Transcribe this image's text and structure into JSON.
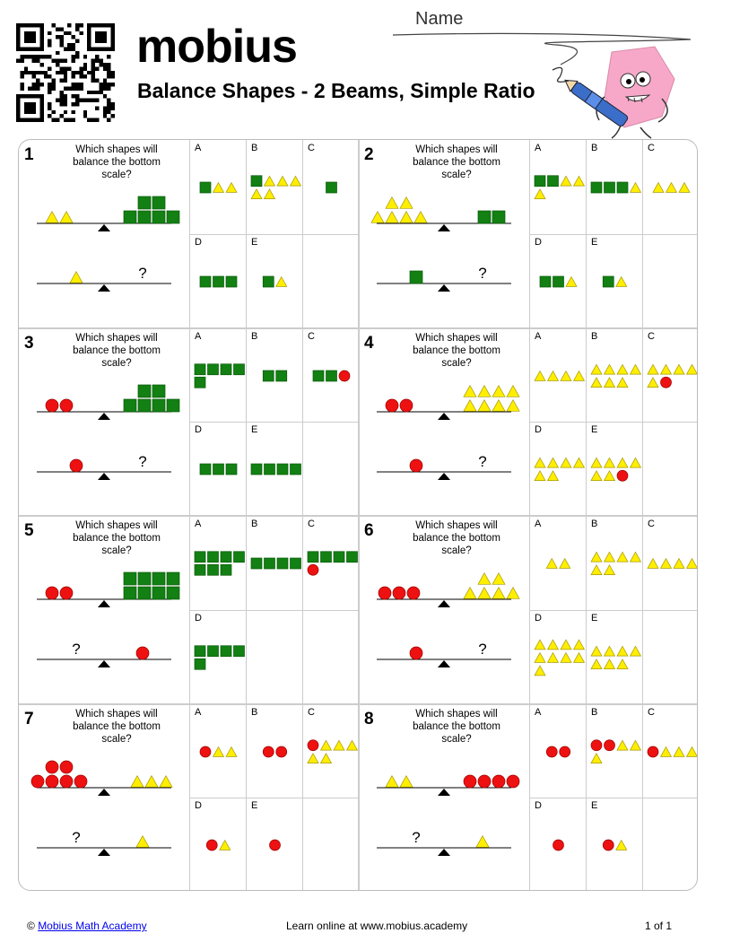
{
  "header": {
    "logo_text": "mobius",
    "title": "Balance Shapes - 2 Beams, Simple Ratio",
    "name_label": "Name"
  },
  "colors": {
    "square": "#128012",
    "triangle": "#ffee00",
    "circle": "#ee1111",
    "logo_drop": "#1aa3d9",
    "mascot": "#f7a8c8"
  },
  "question_text": "Which shapes will balance the bottom scale?",
  "problems": [
    {
      "number": "1",
      "top": {
        "left": [
          [
            "t",
            "t"
          ]
        ],
        "right": [
          [
            "s",
            "s"
          ],
          [
            "s",
            "s",
            "s",
            "s"
          ]
        ]
      },
      "bottom": {
        "left": [
          "t"
        ],
        "right": "?"
      },
      "options": [
        {
          "letter": "A",
          "rows": [
            [
              "s",
              "t",
              "t"
            ]
          ]
        },
        {
          "letter": "B",
          "rows": [
            [
              "s",
              "t",
              "t",
              "t"
            ],
            [
              "t",
              "t"
            ]
          ]
        },
        {
          "letter": "C",
          "rows": [
            [
              "s"
            ]
          ]
        },
        {
          "letter": "D",
          "rows": [
            [
              "s",
              "s",
              "s"
            ]
          ]
        },
        {
          "letter": "E",
          "rows": [
            [
              "s",
              "t"
            ]
          ]
        }
      ]
    },
    {
      "number": "2",
      "top": {
        "left": [
          [
            "t",
            "t"
          ],
          [
            "t",
            "t",
            "t",
            "t"
          ]
        ],
        "right": [
          [
            "s",
            "s"
          ]
        ]
      },
      "bottom": {
        "left": [
          "s"
        ],
        "right": "?"
      },
      "options": [
        {
          "letter": "A",
          "rows": [
            [
              "s",
              "s",
              "t",
              "t"
            ],
            [
              "t"
            ]
          ]
        },
        {
          "letter": "B",
          "rows": [
            [
              "s",
              "s",
              "s",
              "t"
            ]
          ]
        },
        {
          "letter": "C",
          "rows": [
            [
              "t",
              "t",
              "t"
            ]
          ]
        },
        {
          "letter": "D",
          "rows": [
            [
              "s",
              "s",
              "t"
            ]
          ]
        },
        {
          "letter": "E",
          "rows": [
            [
              "s",
              "t"
            ]
          ]
        }
      ]
    },
    {
      "number": "3",
      "top": {
        "left": [
          [
            "c",
            "c"
          ]
        ],
        "right": [
          [
            "s",
            "s"
          ],
          [
            "s",
            "s",
            "s",
            "s"
          ]
        ]
      },
      "bottom": {
        "left": [
          "c"
        ],
        "right": "?"
      },
      "options": [
        {
          "letter": "A",
          "rows": [
            [
              "s",
              "s",
              "s",
              "s"
            ],
            [
              "s"
            ]
          ]
        },
        {
          "letter": "B",
          "rows": [
            [
              "s",
              "s"
            ]
          ]
        },
        {
          "letter": "C",
          "rows": [
            [
              "s",
              "s",
              "c"
            ]
          ]
        },
        {
          "letter": "D",
          "rows": [
            [
              "s",
              "s",
              "s"
            ]
          ]
        },
        {
          "letter": "E",
          "rows": [
            [
              "s",
              "s",
              "s",
              "s"
            ]
          ]
        }
      ]
    },
    {
      "number": "4",
      "top": {
        "left": [
          [
            "c",
            "c"
          ]
        ],
        "right": [
          [
            "t",
            "t",
            "t",
            "t"
          ],
          [
            "t",
            "t",
            "t",
            "t"
          ]
        ]
      },
      "bottom": {
        "left": [
          "c"
        ],
        "right": "?"
      },
      "options": [
        {
          "letter": "A",
          "rows": [
            [
              "t",
              "t",
              "t",
              "t"
            ]
          ]
        },
        {
          "letter": "B",
          "rows": [
            [
              "t",
              "t",
              "t",
              "t"
            ],
            [
              "t",
              "t",
              "t"
            ]
          ]
        },
        {
          "letter": "C",
          "rows": [
            [
              "t",
              "t",
              "t",
              "t"
            ],
            [
              "t",
              "c"
            ]
          ]
        },
        {
          "letter": "D",
          "rows": [
            [
              "t",
              "t",
              "t",
              "t"
            ],
            [
              "t",
              "t"
            ]
          ]
        },
        {
          "letter": "E",
          "rows": [
            [
              "t",
              "t",
              "t",
              "t"
            ],
            [
              "t",
              "t",
              "c"
            ]
          ]
        }
      ]
    },
    {
      "number": "5",
      "top": {
        "left": [
          [
            "c",
            "c"
          ]
        ],
        "right": [
          [
            "s",
            "s",
            "s",
            "s"
          ],
          [
            "s",
            "s",
            "s",
            "s"
          ]
        ]
      },
      "bottom": {
        "left": "?",
        "right": [
          "c"
        ]
      },
      "options": [
        {
          "letter": "A",
          "rows": [
            [
              "s",
              "s",
              "s",
              "s"
            ],
            [
              "s",
              "s",
              "s"
            ]
          ]
        },
        {
          "letter": "B",
          "rows": [
            [
              "s",
              "s",
              "s",
              "s"
            ]
          ]
        },
        {
          "letter": "C",
          "rows": [
            [
              "s",
              "s",
              "s",
              "s"
            ],
            [
              "c"
            ]
          ]
        },
        {
          "letter": "D",
          "rows": [
            [
              "s",
              "s",
              "s",
              "s"
            ],
            [
              "s"
            ]
          ]
        }
      ]
    },
    {
      "number": "6",
      "top": {
        "left": [
          [
            "c",
            "c",
            "c"
          ]
        ],
        "right": [
          [
            "t",
            "t"
          ],
          [
            "t",
            "t",
            "t",
            "t"
          ]
        ]
      },
      "bottom": {
        "left": [
          "c"
        ],
        "right": "?"
      },
      "options": [
        {
          "letter": "A",
          "rows": [
            [
              "t",
              "t"
            ]
          ]
        },
        {
          "letter": "B",
          "rows": [
            [
              "t",
              "t",
              "t",
              "t"
            ],
            [
              "t",
              "t"
            ]
          ]
        },
        {
          "letter": "C",
          "rows": [
            [
              "t",
              "t",
              "t",
              "t"
            ]
          ]
        },
        {
          "letter": "D",
          "rows": [
            [
              "t",
              "t",
              "t",
              "t"
            ],
            [
              "t",
              "t",
              "t",
              "t"
            ],
            [
              "t"
            ]
          ]
        },
        {
          "letter": "E",
          "rows": [
            [
              "t",
              "t",
              "t",
              "t"
            ],
            [
              "t",
              "t",
              "t"
            ]
          ]
        }
      ]
    },
    {
      "number": "7",
      "top": {
        "left": [
          [
            "c",
            "c"
          ],
          [
            "c",
            "c",
            "c",
            "c"
          ]
        ],
        "right": [
          [
            "t",
            "t",
            "t"
          ]
        ]
      },
      "bottom": {
        "left": "?",
        "right": [
          "t"
        ]
      },
      "options": [
        {
          "letter": "A",
          "rows": [
            [
              "c",
              "t",
              "t"
            ]
          ]
        },
        {
          "letter": "B",
          "rows": [
            [
              "c",
              "c"
            ]
          ]
        },
        {
          "letter": "C",
          "rows": [
            [
              "c",
              "t",
              "t",
              "t"
            ],
            [
              "t",
              "t"
            ]
          ]
        },
        {
          "letter": "D",
          "rows": [
            [
              "c",
              "t"
            ]
          ]
        },
        {
          "letter": "E",
          "rows": [
            [
              "c"
            ]
          ]
        }
      ]
    },
    {
      "number": "8",
      "top": {
        "left": [
          [
            "t",
            "t"
          ]
        ],
        "right": [
          [
            "c",
            "c",
            "c",
            "c"
          ]
        ]
      },
      "bottom": {
        "left": "?",
        "right": [
          "t"
        ]
      },
      "options": [
        {
          "letter": "A",
          "rows": [
            [
              "c",
              "c"
            ]
          ]
        },
        {
          "letter": "B",
          "rows": [
            [
              "c",
              "c",
              "t",
              "t"
            ],
            [
              "t"
            ]
          ]
        },
        {
          "letter": "C",
          "rows": [
            [
              "c",
              "t",
              "t",
              "t"
            ]
          ]
        },
        {
          "letter": "D",
          "rows": [
            [
              "c"
            ]
          ]
        },
        {
          "letter": "E",
          "rows": [
            [
              "c",
              "t"
            ]
          ]
        }
      ]
    }
  ],
  "footer": {
    "copyright": "©",
    "academy_link": "Mobius Math Academy",
    "learn_online": "Learn online at www.mobius.academy",
    "page": "1 of 1"
  }
}
